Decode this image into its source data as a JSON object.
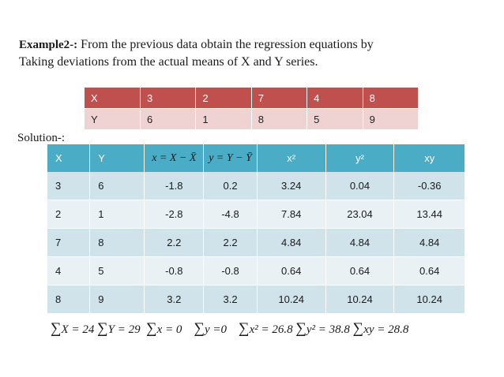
{
  "heading": {
    "label": "Example2-:",
    "line1": "From the previous data obtain the regression equations by",
    "line2": "Taking deviations from the actual means of X and Y series."
  },
  "data_table": {
    "rows": [
      [
        "X",
        "3",
        "2",
        "7",
        "4",
        "8"
      ],
      [
        "Y",
        "6",
        "1",
        "8",
        "5",
        "9"
      ]
    ]
  },
  "solution_label": "Solution-:",
  "calc_table": {
    "headers": [
      "X",
      "Y",
      "x = X − X̄",
      "y = Y − Ȳ",
      "x²",
      "y²",
      "xy"
    ],
    "rows": [
      [
        "3",
        "6",
        "-1.8",
        "0.2",
        "3.24",
        "0.04",
        "-0.36"
      ],
      [
        "2",
        "1",
        "-2.8",
        "-4.8",
        "7.84",
        "23.04",
        "13.44"
      ],
      [
        "7",
        "8",
        "2.2",
        "2.2",
        "4.84",
        "4.84",
        "4.84"
      ],
      [
        "4",
        "5",
        "-0.8",
        "-0.8",
        "0.64",
        "0.64",
        "0.64"
      ],
      [
        "8",
        "9",
        "3.2",
        "3.2",
        "10.24",
        "10.24",
        "10.24"
      ]
    ],
    "sums": [
      "X = 24",
      "Y = 29",
      "x = 0",
      "y =0",
      "x² = 26.8",
      "y² = 38.8",
      "xy = 28.8"
    ]
  },
  "colors": {
    "data_header": "#c0504d",
    "data_row": "#efd3d2",
    "calc_header": "#4bacc6",
    "calc_band": "#d0e3ea",
    "calc_plain": "#e9f1f5"
  }
}
